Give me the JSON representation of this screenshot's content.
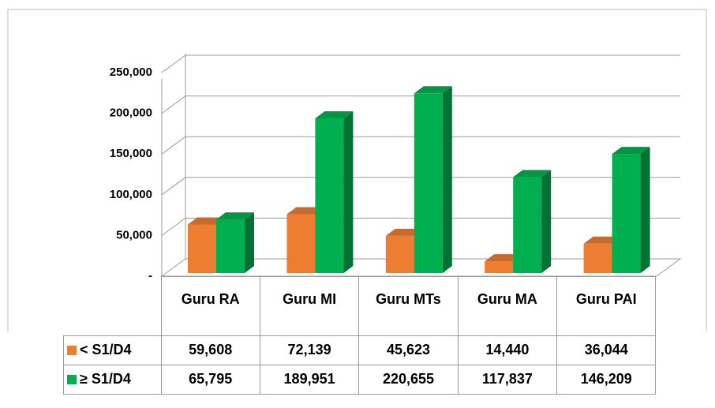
{
  "chart_data": {
    "type": "bar3d",
    "categories": [
      "Guru RA",
      "Guru MI",
      "Guru MTs",
      "Guru MA",
      "Guru PAI"
    ],
    "series": [
      {
        "name": "< S1/D4",
        "color": "#ed7d31",
        "values": [
          59608,
          72139,
          45623,
          14440,
          36044
        ],
        "value_labels": [
          "59,608",
          "72,139",
          "45,623",
          "14,440",
          "36,044"
        ]
      },
      {
        "name": "≥ S1/D4",
        "color": "#00b050",
        "values": [
          65795,
          189951,
          220655,
          117837,
          146209
        ],
        "value_labels": [
          "65,795",
          "189,951",
          "220,655",
          "117,837",
          "146,209"
        ]
      }
    ],
    "ylim": [
      0,
      250000
    ],
    "yticks": [
      {
        "value": 0,
        "label": "-"
      },
      {
        "value": 50000,
        "label": "50,000"
      },
      {
        "value": 100000,
        "label": "100,000"
      },
      {
        "value": 150000,
        "label": "150,000"
      },
      {
        "value": 200000,
        "label": "200,000"
      },
      {
        "value": 250000,
        "label": "250,000"
      }
    ],
    "grid": true
  }
}
